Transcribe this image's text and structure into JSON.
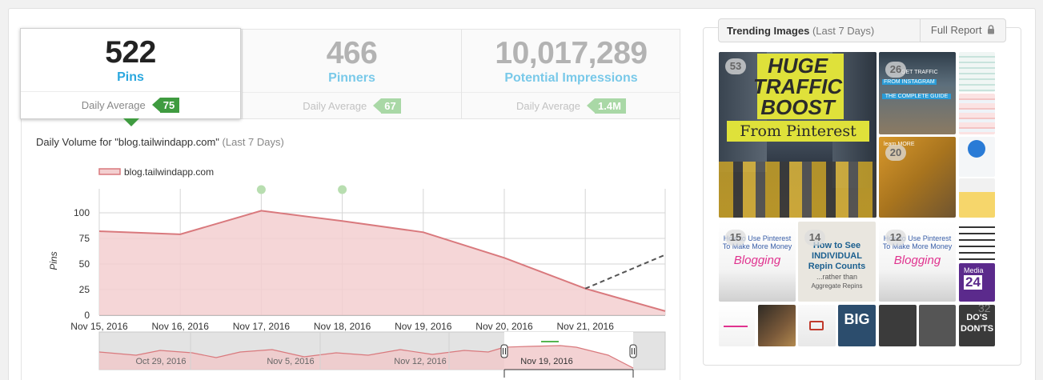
{
  "stats": [
    {
      "value": "522",
      "label": "Pins",
      "avg_label": "Daily Average",
      "avg_value": "75"
    },
    {
      "value": "466",
      "label": "Pinners",
      "avg_label": "Daily Average",
      "avg_value": "67"
    },
    {
      "value": "10,017,289",
      "label": "Potential Impressions",
      "avg_label": "Daily Average",
      "avg_value": "1.4M"
    }
  ],
  "chart_panel": {
    "title": "Daily Volume for \"blog.tailwindapp.com\"",
    "title_suffix": "(Last 7 Days)"
  },
  "chart_data": {
    "type": "area",
    "title": "",
    "ylabel": "Pins",
    "ylim": [
      0,
      100
    ],
    "y_ticks": [
      "100",
      "75",
      "50",
      "25",
      "0"
    ],
    "x_ticks": [
      "Nov 15, 2016",
      "Nov 16, 2016",
      "Nov 17, 2016",
      "Nov 18, 2016",
      "Nov 19, 2016",
      "Nov 20, 2016",
      "Nov 21, 2016"
    ],
    "legend_position": "top-left",
    "grid": true,
    "series": [
      {
        "name": "blog.tailwindapp.com",
        "color": "#d9797d",
        "values": [
          {
            "x": "Nov 15, 2016",
            "y": 82
          },
          {
            "x": "Nov 16, 2016",
            "y": 79
          },
          {
            "x": "Nov 17, 2016",
            "y": 102
          },
          {
            "x": "Nov 18, 2016",
            "y": 92
          },
          {
            "x": "Nov 19, 2016",
            "y": 81
          },
          {
            "x": "Nov 20, 2016",
            "y": 56
          },
          {
            "x": "Nov 21, 2016",
            "y": 26
          },
          {
            "x": "Nov 22, 2016",
            "y": 4
          }
        ]
      }
    ],
    "projection": {
      "from": {
        "x": "Nov 21, 2016",
        "y": 26
      },
      "to": {
        "x": "Nov 22, 2016",
        "y": 59
      },
      "style": "dashed"
    },
    "event_markers": [
      "Nov 17, 2016",
      "Nov 18, 2016"
    ],
    "navigator": {
      "ticks": [
        "Oct 29, 2016",
        "Nov 5, 2016",
        "Nov 12, 2016",
        "Nov 19, 2016"
      ]
    }
  },
  "trending": {
    "title": "Trending Images",
    "period": "(Last 7 Days)",
    "full_report_label": "Full Report",
    "featured": {
      "badge": "53",
      "line1": "HUGE",
      "line2": "TRAFFIC",
      "line3": "BOOST",
      "line4": "From Pinterest"
    },
    "small_badges": [
      "26",
      "20",
      "15",
      "14",
      "12"
    ],
    "tiles": {
      "get_traffic": "GET TRAFFIC",
      "from_instagram": "FROM INSTAGRAM",
      "complete_guide": "THE COMPLETE GUIDE",
      "learn_more": "learn MORE",
      "how_to_use_1": "How to Use Pinterest To Make More Money",
      "blogging": "Blogging",
      "how_to_see": "How to See",
      "individual": "INDIVIDUAL",
      "repin_counts": "Repin Counts",
      "rather_than": "...rather than",
      "aggregate": "Aggregate Repins",
      "media": "Media",
      "media_num": "24",
      "big": "BIG",
      "dos": "DO'S",
      "donts": "DON'TS",
      "small_32": "32"
    }
  },
  "colors": {
    "accent_blue": "#2aa7de",
    "active_green": "#3f9b40",
    "muted_green": "#a9d8a6",
    "series_fill": "#f3cfd0",
    "series_line": "#d9797d"
  }
}
